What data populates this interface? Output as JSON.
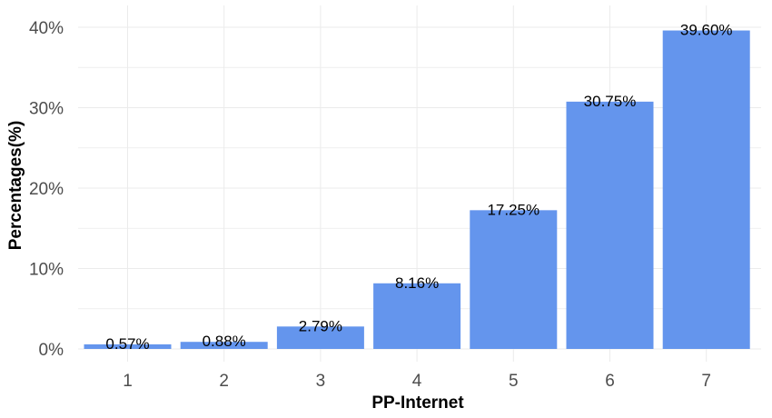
{
  "chart_data": {
    "type": "bar",
    "title": "",
    "xlabel": "PP-Internet",
    "ylabel": "Percentages(%)",
    "categories": [
      "1",
      "2",
      "3",
      "4",
      "5",
      "6",
      "7"
    ],
    "values": [
      0.57,
      0.88,
      2.79,
      8.16,
      17.25,
      30.75,
      39.6
    ],
    "data_labels": [
      "0.57%",
      "0.88%",
      "2.79%",
      "8.16%",
      "17.25%",
      "30.75%",
      "39.60%"
    ],
    "y_ticks": [
      0,
      10,
      20,
      30,
      40
    ],
    "y_tick_labels": [
      "0%",
      "10%",
      "20%",
      "30%",
      "40%"
    ],
    "ylim": [
      0,
      42.5
    ],
    "grid": true,
    "legend": "none",
    "colors": {
      "bar": "#6495ED",
      "grid": "#ebebeb",
      "tick_text": "#4d4d4d",
      "label_text": "#000000"
    }
  }
}
